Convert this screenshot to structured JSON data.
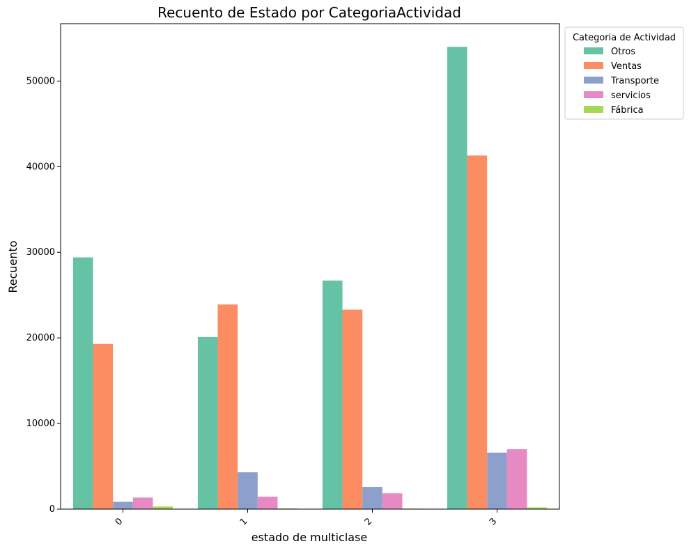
{
  "chart_data": {
    "type": "bar",
    "title": "Recuento de Estado por CategoriaActividad",
    "xlabel": "estado de multiclase",
    "ylabel": "Recuento",
    "categories": [
      "0",
      "1",
      "2",
      "3"
    ],
    "ylim": [
      0,
      56700
    ],
    "yticks": [
      0,
      10000,
      20000,
      30000,
      40000,
      50000
    ],
    "grid": false,
    "legend": {
      "title": "Categoria de Actividad",
      "placement": "outside-top-right"
    },
    "series": [
      {
        "name": "Otros",
        "color": "#66c2a5",
        "values": [
          29400,
          20100,
          26700,
          54000
        ]
      },
      {
        "name": "Ventas",
        "color": "#fc8d62",
        "values": [
          19300,
          23900,
          23300,
          41300
        ]
      },
      {
        "name": "Transporte",
        "color": "#8da0cb",
        "values": [
          850,
          4300,
          2600,
          6600
        ]
      },
      {
        "name": "servicios",
        "color": "#e78ac3",
        "values": [
          1350,
          1450,
          1850,
          7000
        ]
      },
      {
        "name": "Fábrica",
        "color": "#a6d854",
        "values": [
          300,
          80,
          60,
          200
        ]
      }
    ]
  }
}
